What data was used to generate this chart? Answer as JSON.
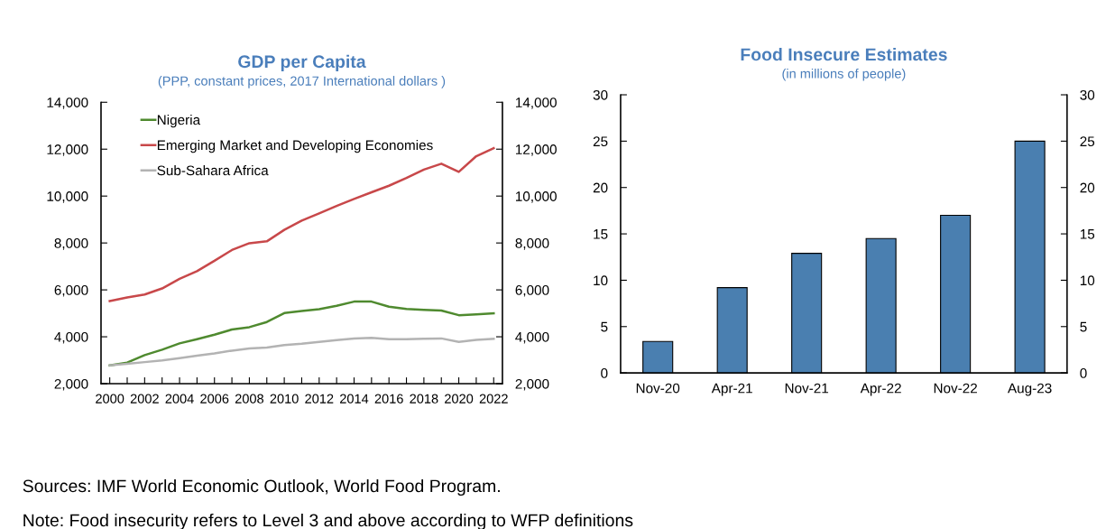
{
  "chart_data": [
    {
      "type": "line",
      "title": "GDP per Capita",
      "subtitle": "(PPP, constant prices, 2017 International dollars )",
      "x": [
        2000,
        2001,
        2002,
        2003,
        2004,
        2005,
        2006,
        2007,
        2008,
        2009,
        2010,
        2011,
        2012,
        2013,
        2014,
        2015,
        2016,
        2017,
        2018,
        2019,
        2020,
        2021,
        2022
      ],
      "series": [
        {
          "name": "Nigeria",
          "color": "#4f8a2f",
          "values": [
            2780,
            2900,
            3220,
            3450,
            3720,
            3900,
            4090,
            4310,
            4410,
            4630,
            5010,
            5100,
            5180,
            5320,
            5500,
            5500,
            5280,
            5190,
            5150,
            5120,
            4920,
            4960,
            5000
          ]
        },
        {
          "name": "Emerging Market and Developing Economies",
          "color": "#c8484a",
          "values": [
            5520,
            5680,
            5800,
            6060,
            6470,
            6800,
            7240,
            7700,
            7990,
            8070,
            8560,
            8950,
            9260,
            9580,
            9880,
            10160,
            10440,
            10770,
            11130,
            11380,
            11030,
            11700,
            12040
          ]
        },
        {
          "name": "Sub-Sahara Africa",
          "color": "#b3b3b3",
          "values": [
            2780,
            2850,
            2920,
            2990,
            3090,
            3190,
            3290,
            3410,
            3500,
            3540,
            3650,
            3700,
            3780,
            3860,
            3930,
            3950,
            3900,
            3900,
            3920,
            3930,
            3780,
            3870,
            3910
          ]
        }
      ],
      "xlim": [
        1999.5,
        2022.5
      ],
      "xticks": [
        2000,
        {
          "value": 2001,
          "label": null
        },
        2002,
        {
          "value": 2003,
          "label": null
        },
        2004,
        {
          "value": 2005,
          "label": null
        },
        2006,
        {
          "value": 2007,
          "label": null
        },
        2008,
        {
          "value": 2009,
          "label": null
        },
        2010,
        {
          "value": 2011,
          "label": null
        },
        2012,
        {
          "value": 2013,
          "label": null
        },
        2014,
        {
          "value": 2015,
          "label": null
        },
        2016,
        {
          "value": 2017,
          "label": null
        },
        2018,
        {
          "value": 2019,
          "label": null
        },
        2020,
        {
          "value": 2021,
          "label": null
        },
        2022
      ],
      "ylim": [
        2000,
        14000
      ],
      "yticks": [
        {
          "value": 2000,
          "label": "2,000"
        },
        {
          "value": 4000,
          "label": "4,000"
        },
        {
          "value": 6000,
          "label": "6,000"
        },
        {
          "value": 8000,
          "label": "8,000"
        },
        {
          "value": 10000,
          "label": "10,000"
        },
        {
          "value": 12000,
          "label": "12,000"
        },
        {
          "value": 14000,
          "label": "14,000"
        }
      ],
      "y2lim": [
        2000,
        14000
      ],
      "y2ticks": [
        {
          "value": 2000,
          "label": "2,000"
        },
        {
          "value": 4000,
          "label": "4,000"
        },
        {
          "value": 6000,
          "label": "6,000"
        },
        {
          "value": 8000,
          "label": "8,000"
        },
        {
          "value": 10000,
          "label": "10,000"
        },
        {
          "value": 12000,
          "label": "12,000"
        },
        {
          "value": 14000,
          "label": "14,000"
        }
      ],
      "grid": false,
      "legend": "top left",
      "marker": "none",
      "line_style": "solid",
      "annotations": [
        "Sources: IMF World Economic Outlook, World Food Program."
      ]
    },
    {
      "type": "bar",
      "title": "Food Insecure Estimates",
      "subtitle": "(in millions of people)",
      "categories": [
        "Nov-20",
        "Apr-21",
        "Nov-21",
        "Apr-22",
        "Nov-22",
        "Aug-23"
      ],
      "values": [
        3.4,
        9.2,
        12.9,
        14.5,
        17.0,
        25.0
      ],
      "color": "#4a7fb0",
      "ylim": [
        0,
        30
      ],
      "yticks": [
        0,
        5,
        10,
        15,
        20,
        25,
        30
      ],
      "y2lim": [
        0,
        30
      ],
      "y2ticks": [
        0,
        5,
        10,
        15,
        20,
        25,
        30
      ],
      "grid": false,
      "legend": false,
      "annotations": [
        "Note: Food insecurity refers to Level 3 and above according to WFP definitions"
      ]
    }
  ]
}
